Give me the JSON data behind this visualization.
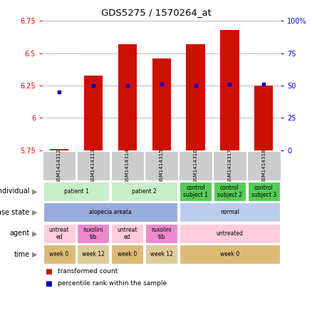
{
  "title": "GDS5275 / 1570264_at",
  "samples": [
    "GSM1414312",
    "GSM1414313",
    "GSM1414314",
    "GSM1414315",
    "GSM1414316",
    "GSM1414317",
    "GSM1414318"
  ],
  "transformed_count": [
    5.76,
    6.33,
    6.57,
    6.46,
    6.57,
    6.68,
    6.25
  ],
  "percentile_rank": [
    45,
    50,
    50,
    51,
    50,
    51,
    51
  ],
  "ylim_left": [
    5.75,
    6.75
  ],
  "ylim_right": [
    0,
    100
  ],
  "yticks_left": [
    5.75,
    6.0,
    6.25,
    6.5,
    6.75
  ],
  "yticks_right": [
    0,
    25,
    50,
    75,
    100
  ],
  "ytick_labels_left": [
    "5.75",
    "6",
    "6.25",
    "6.5",
    "6.75"
  ],
  "ytick_labels_right": [
    "0",
    "25",
    "50",
    "75",
    "100%"
  ],
  "bar_color": "#cc1100",
  "dot_color": "#0000cc",
  "individual_data": [
    {
      "label": "patient 1",
      "span": [
        0,
        1
      ],
      "color": "#c8eec8"
    },
    {
      "label": "patient 2",
      "span": [
        2,
        3
      ],
      "color": "#c8eec8"
    },
    {
      "label": "control\nsubject 1",
      "span": [
        4,
        4
      ],
      "color": "#55cc55"
    },
    {
      "label": "control\nsubject 2",
      "span": [
        5,
        5
      ],
      "color": "#55cc55"
    },
    {
      "label": "control\nsubject 3",
      "span": [
        6,
        6
      ],
      "color": "#55cc55"
    }
  ],
  "disease_state_data": [
    {
      "label": "alopecia areata",
      "span": [
        0,
        3
      ],
      "color": "#99aadd"
    },
    {
      "label": "normal",
      "span": [
        4,
        6
      ],
      "color": "#bbccee"
    }
  ],
  "agent_data": [
    {
      "label": "untreat\ned",
      "span": [
        0,
        0
      ],
      "color": "#ffccdd"
    },
    {
      "label": "ruxolini\ntib",
      "span": [
        1,
        1
      ],
      "color": "#ee88cc"
    },
    {
      "label": "untreat\ned",
      "span": [
        2,
        2
      ],
      "color": "#ffccdd"
    },
    {
      "label": "ruxolini\ntib",
      "span": [
        3,
        3
      ],
      "color": "#ee88cc"
    },
    {
      "label": "untreated",
      "span": [
        4,
        6
      ],
      "color": "#ffccdd"
    }
  ],
  "time_data": [
    {
      "label": "week 0",
      "span": [
        0,
        0
      ],
      "color": "#ddbb77"
    },
    {
      "label": "week 12",
      "span": [
        1,
        1
      ],
      "color": "#ddcc99"
    },
    {
      "label": "week 0",
      "span": [
        2,
        2
      ],
      "color": "#ddbb77"
    },
    {
      "label": "week 12",
      "span": [
        3,
        3
      ],
      "color": "#ddcc99"
    },
    {
      "label": "week 0",
      "span": [
        4,
        6
      ],
      "color": "#ddbb77"
    }
  ],
  "sample_bg_color": "#cccccc",
  "legend_items": [
    {
      "color": "#cc1100",
      "label": "transformed count"
    },
    {
      "color": "#0000cc",
      "label": "percentile rank within the sample"
    }
  ],
  "row_labels": [
    "individual",
    "disease state",
    "agent",
    "time"
  ]
}
